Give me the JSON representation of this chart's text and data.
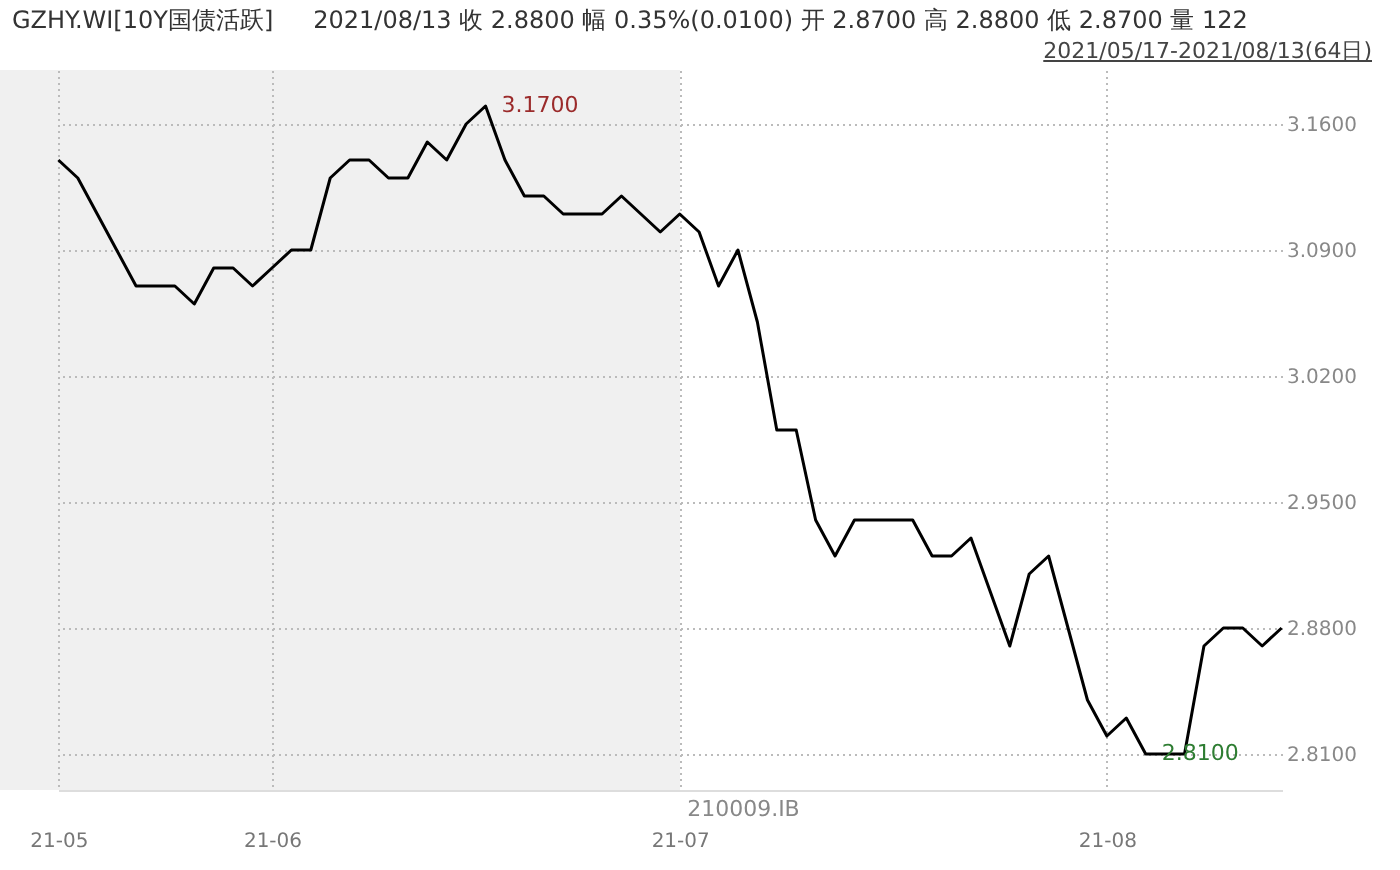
{
  "chart_data": {
    "type": "line",
    "title": "GZHY.WI[10Y国债活跃]",
    "subtitle": "2021/08/13   收 2.8800   幅 0.35%(0.0100)   开 2.8700   高 2.8800   低 2.8700   量 122",
    "categories": [
      "21-05",
      null,
      null,
      null,
      null,
      null,
      null,
      null,
      null,
      null,
      null,
      "21-06",
      null,
      null,
      null,
      null,
      null,
      null,
      null,
      null,
      null,
      null,
      null,
      null,
      null,
      null,
      null,
      null,
      null,
      null,
      null,
      null,
      "21-07",
      null,
      null,
      null,
      null,
      null,
      null,
      null,
      null,
      null,
      null,
      null,
      null,
      null,
      null,
      null,
      null,
      null,
      null,
      null,
      null,
      null,
      "21-08",
      null,
      null,
      null,
      null,
      null,
      null,
      null,
      null,
      null
    ],
    "series": [
      {
        "color": "#000000",
        "values": [
          3.14,
          3.13,
          3.11,
          3.09,
          3.07,
          3.07,
          3.07,
          3.06,
          3.08,
          3.08,
          3.07,
          3.08,
          3.09,
          3.09,
          3.13,
          3.14,
          3.14,
          3.13,
          3.13,
          3.15,
          3.14,
          3.16,
          3.17,
          3.14,
          3.12,
          3.12,
          3.11,
          3.11,
          3.11,
          3.12,
          3.11,
          3.1,
          3.11,
          3.1,
          3.07,
          3.09,
          3.05,
          2.99,
          2.99,
          2.94,
          2.92,
          2.94,
          2.94,
          2.94,
          2.94,
          2.92,
          2.92,
          2.93,
          2.9,
          2.87,
          2.91,
          2.92,
          2.88,
          2.84,
          2.82,
          2.83,
          2.81,
          2.81,
          2.81,
          2.87,
          2.88,
          2.88,
          2.87,
          2.88
        ]
      }
    ],
    "ylim": [
      2.79,
      3.19
    ],
    "yticks": [
      {
        "value": 2.81,
        "label": "2.8100"
      },
      {
        "value": 2.88,
        "label": "2.8800"
      },
      {
        "value": 2.95,
        "label": "2.9500"
      },
      {
        "value": 3.02,
        "label": "3.0200"
      },
      {
        "value": 3.09,
        "label": "3.0900"
      },
      {
        "value": 3.16,
        "label": "3.1600"
      }
    ],
    "annotations": [
      "2021/05/17-2021/08/13(64日)",
      "210009.IB",
      "3.1700",
      "2.8100"
    ],
    "grid": true
  }
}
